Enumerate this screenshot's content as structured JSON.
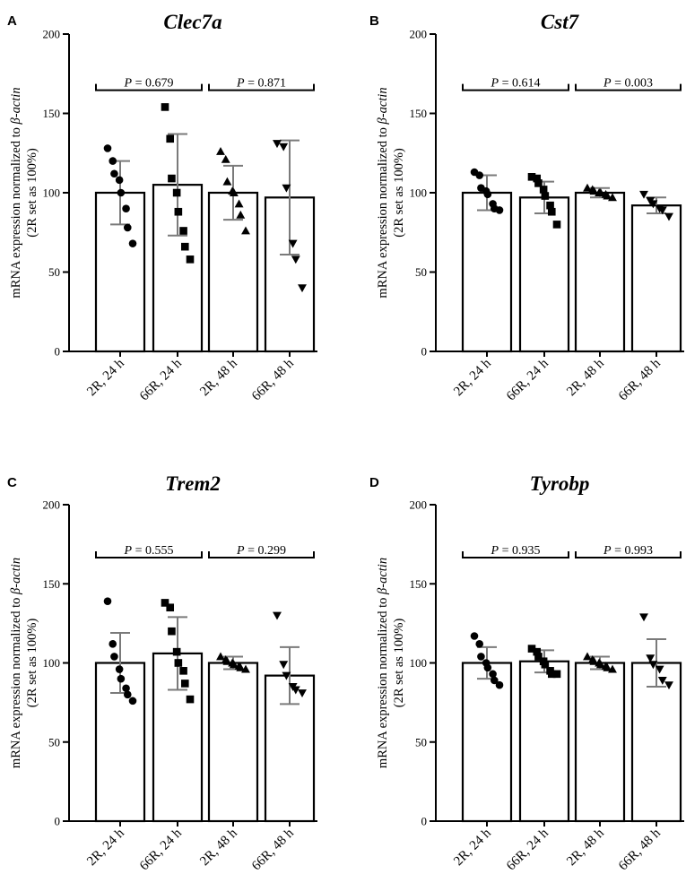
{
  "chart_data": [
    {
      "panel": "A",
      "type": "bar",
      "title": "Clec7a",
      "ylabel_line1_pre": "mRNA expression normalized to ",
      "ylabel_line1_ital": "β-actin",
      "ylabel_line2": "(2R set as 100%)",
      "ylim": [
        0,
        200
      ],
      "yticks": [
        "0",
        "50",
        "100",
        "150",
        "200"
      ],
      "categories": [
        "2R, 24 h",
        "66R, 24 h",
        "2R, 48 h",
        "66R, 48 h"
      ],
      "markers": [
        "circle",
        "square",
        "triangle-up",
        "triangle-down"
      ],
      "means": [
        100,
        105,
        100,
        97
      ],
      "sd": [
        20,
        32,
        17,
        36
      ],
      "points": [
        [
          128,
          120,
          112,
          108,
          100,
          90,
          78,
          68
        ],
        [
          154,
          134,
          109,
          100,
          88,
          76,
          66,
          58
        ],
        [
          126,
          121,
          107,
          101,
          100,
          93,
          86,
          76
        ],
        [
          131,
          129,
          103,
          68,
          58,
          40
        ]
      ],
      "comparisons": [
        {
          "from": 0,
          "to": 1,
          "label": "P = 0.679",
          "y": 168
        },
        {
          "from": 2,
          "to": 3,
          "label": "P = 0.871",
          "y": 168
        }
      ]
    },
    {
      "panel": "B",
      "type": "bar",
      "title": "Cst7",
      "ylabel_line1_pre": "mRNA expression normalized to ",
      "ylabel_line1_ital": "β-actin",
      "ylabel_line2": "(2R set as 100%)",
      "ylim": [
        0,
        200
      ],
      "yticks": [
        "0",
        "50",
        "100",
        "150",
        "200"
      ],
      "categories": [
        "2R, 24 h",
        "66R, 24 h",
        "2R, 48 h",
        "66R, 48 h"
      ],
      "markers": [
        "circle",
        "square",
        "triangle-up",
        "triangle-down"
      ],
      "means": [
        100,
        97,
        100,
        92
      ],
      "sd": [
        11,
        10,
        3,
        5
      ],
      "points": [
        [
          113,
          111,
          103,
          101,
          99,
          93,
          90,
          89
        ],
        [
          110,
          109,
          106,
          102,
          98,
          92,
          88,
          80
        ],
        [
          103,
          102,
          101,
          100,
          100,
          99,
          98,
          97
        ],
        [
          99,
          95,
          93,
          90,
          89,
          85
        ]
      ],
      "comparisons": [
        {
          "from": 0,
          "to": 1,
          "label": "P = 0.614",
          "y": 168
        },
        {
          "from": 2,
          "to": 3,
          "label": "P = 0.003",
          "y": 168
        }
      ]
    },
    {
      "panel": "C",
      "type": "bar",
      "title": "Trem2",
      "ylabel_line1_pre": "mRNA expression normalized to ",
      "ylabel_line1_ital": "β-actin",
      "ylabel_line2": "(2R set as 100%)",
      "ylim": [
        0,
        200
      ],
      "yticks": [
        "0",
        "50",
        "100",
        "150",
        "200"
      ],
      "categories": [
        "2R, 24 h",
        "66R, 24 h",
        "2R, 48 h",
        "66R, 48 h"
      ],
      "markers": [
        "circle",
        "square",
        "triangle-up",
        "triangle-down"
      ],
      "means": [
        100,
        106,
        100,
        92
      ],
      "sd": [
        19,
        23,
        4,
        18
      ],
      "points": [
        [
          139,
          112,
          104,
          96,
          90,
          84,
          80,
          76
        ],
        [
          138,
          135,
          120,
          107,
          100,
          95,
          87,
          77
        ],
        [
          104,
          102,
          101,
          100,
          99,
          98,
          97,
          96
        ],
        [
          130,
          99,
          92,
          85,
          83,
          81
        ]
      ],
      "comparisons": [
        {
          "from": 0,
          "to": 1,
          "label": "P = 0.555",
          "y": 170
        },
        {
          "from": 2,
          "to": 3,
          "label": "P = 0.299",
          "y": 170
        }
      ]
    },
    {
      "panel": "D",
      "type": "bar",
      "title": "Tyrobp",
      "ylabel_line1_pre": "mRNA expression normalized to ",
      "ylabel_line1_ital": "β-actin",
      "ylabel_line2": "(2R set as 100%)",
      "ylim": [
        0,
        200
      ],
      "yticks": [
        "0",
        "50",
        "100",
        "150",
        "200"
      ],
      "categories": [
        "2R, 24 h",
        "66R, 24 h",
        "2R, 48 h",
        "66R, 48 h"
      ],
      "markers": [
        "circle",
        "square",
        "triangle-up",
        "triangle-down"
      ],
      "means": [
        100,
        101,
        100,
        100
      ],
      "sd": [
        10,
        7,
        4,
        15
      ],
      "points": [
        [
          117,
          112,
          104,
          100,
          97,
          93,
          89,
          86
        ],
        [
          109,
          107,
          104,
          101,
          99,
          95,
          93,
          93
        ],
        [
          104,
          102,
          101,
          100,
          99,
          98,
          97,
          96
        ],
        [
          129,
          103,
          99,
          96,
          89,
          86
        ]
      ],
      "comparisons": [
        {
          "from": 0,
          "to": 1,
          "label": "P = 0.935",
          "y": 170
        },
        {
          "from": 2,
          "to": 3,
          "label": "P = 0.993",
          "y": 170
        }
      ]
    }
  ]
}
